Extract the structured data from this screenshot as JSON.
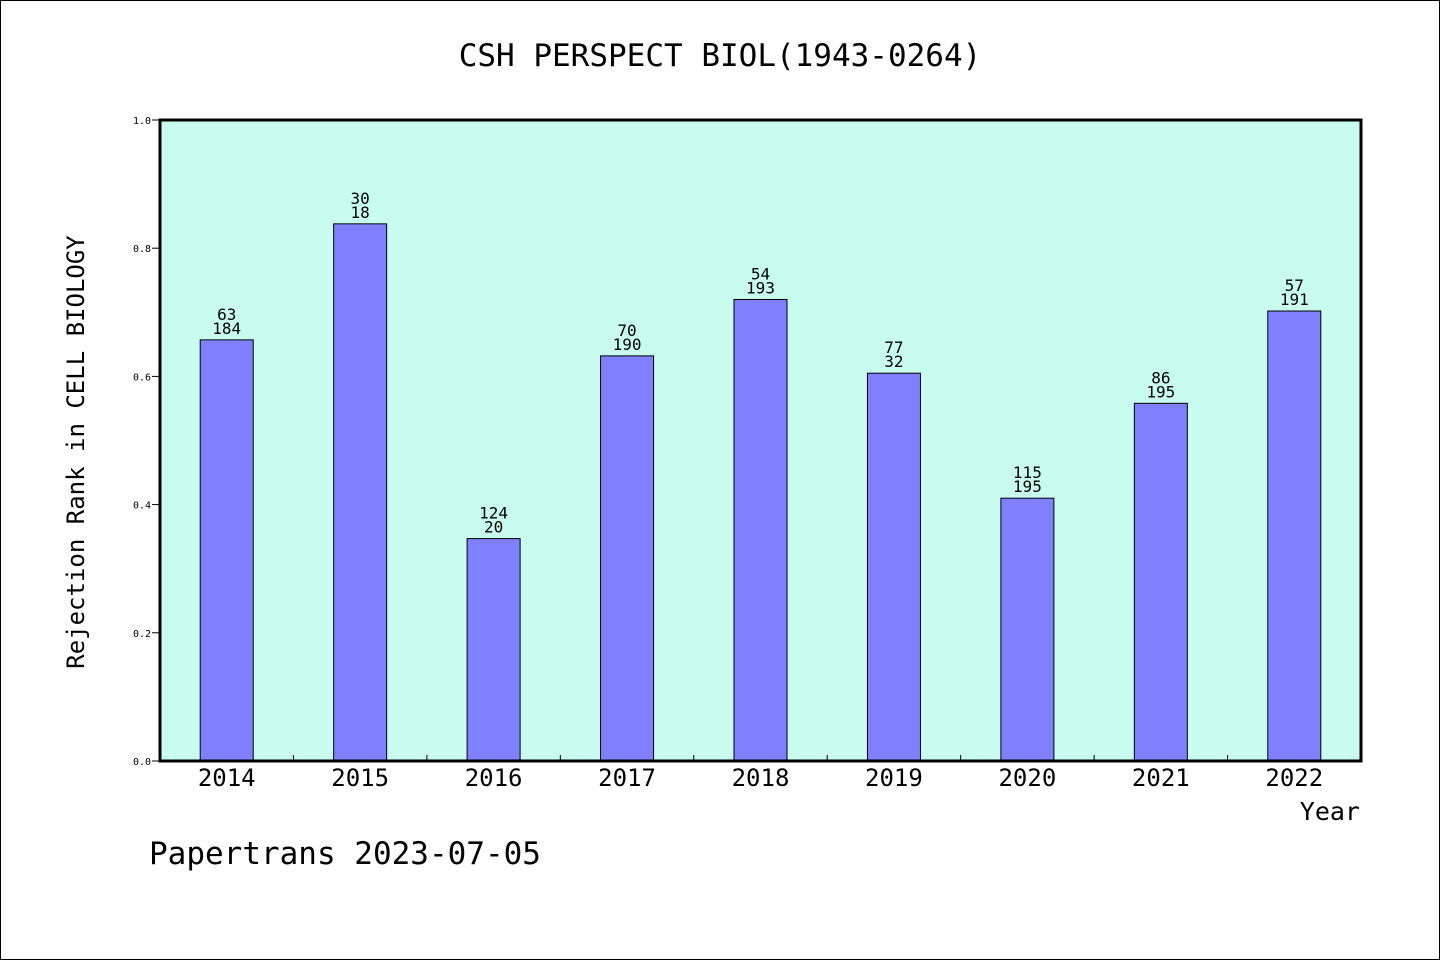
{
  "chart_data": {
    "type": "bar",
    "title": "CSH PERSPECT BIOL(1943-0264)",
    "xlabel": "Year",
    "ylabel": "Rejection Rank in CELL BIOLOGY",
    "ylim": [
      0,
      1.0
    ],
    "yticks": [
      "0.0",
      "0.2",
      "0.4",
      "0.6",
      "0.8",
      "1.0"
    ],
    "grid": false,
    "categories": [
      "2014",
      "2015",
      "2016",
      "2017",
      "2018",
      "2019",
      "2020",
      "2021",
      "2022"
    ],
    "values": [
      0.657,
      0.838,
      0.347,
      0.632,
      0.72,
      0.605,
      0.41,
      0.558,
      0.702
    ],
    "bar_labels_top": [
      "63",
      "30",
      "124",
      "70",
      "54",
      "77",
      "115",
      "86",
      "57"
    ],
    "bar_labels_bottom": [
      "184",
      "18",
      "20",
      "190",
      "193",
      "32",
      "195",
      "195",
      "191"
    ],
    "colors": {
      "bar": "#8080ff",
      "plot_background": "#c8fcee",
      "axis": "#000000"
    }
  },
  "footer": {
    "text": "Papertrans 2023-07-05"
  }
}
